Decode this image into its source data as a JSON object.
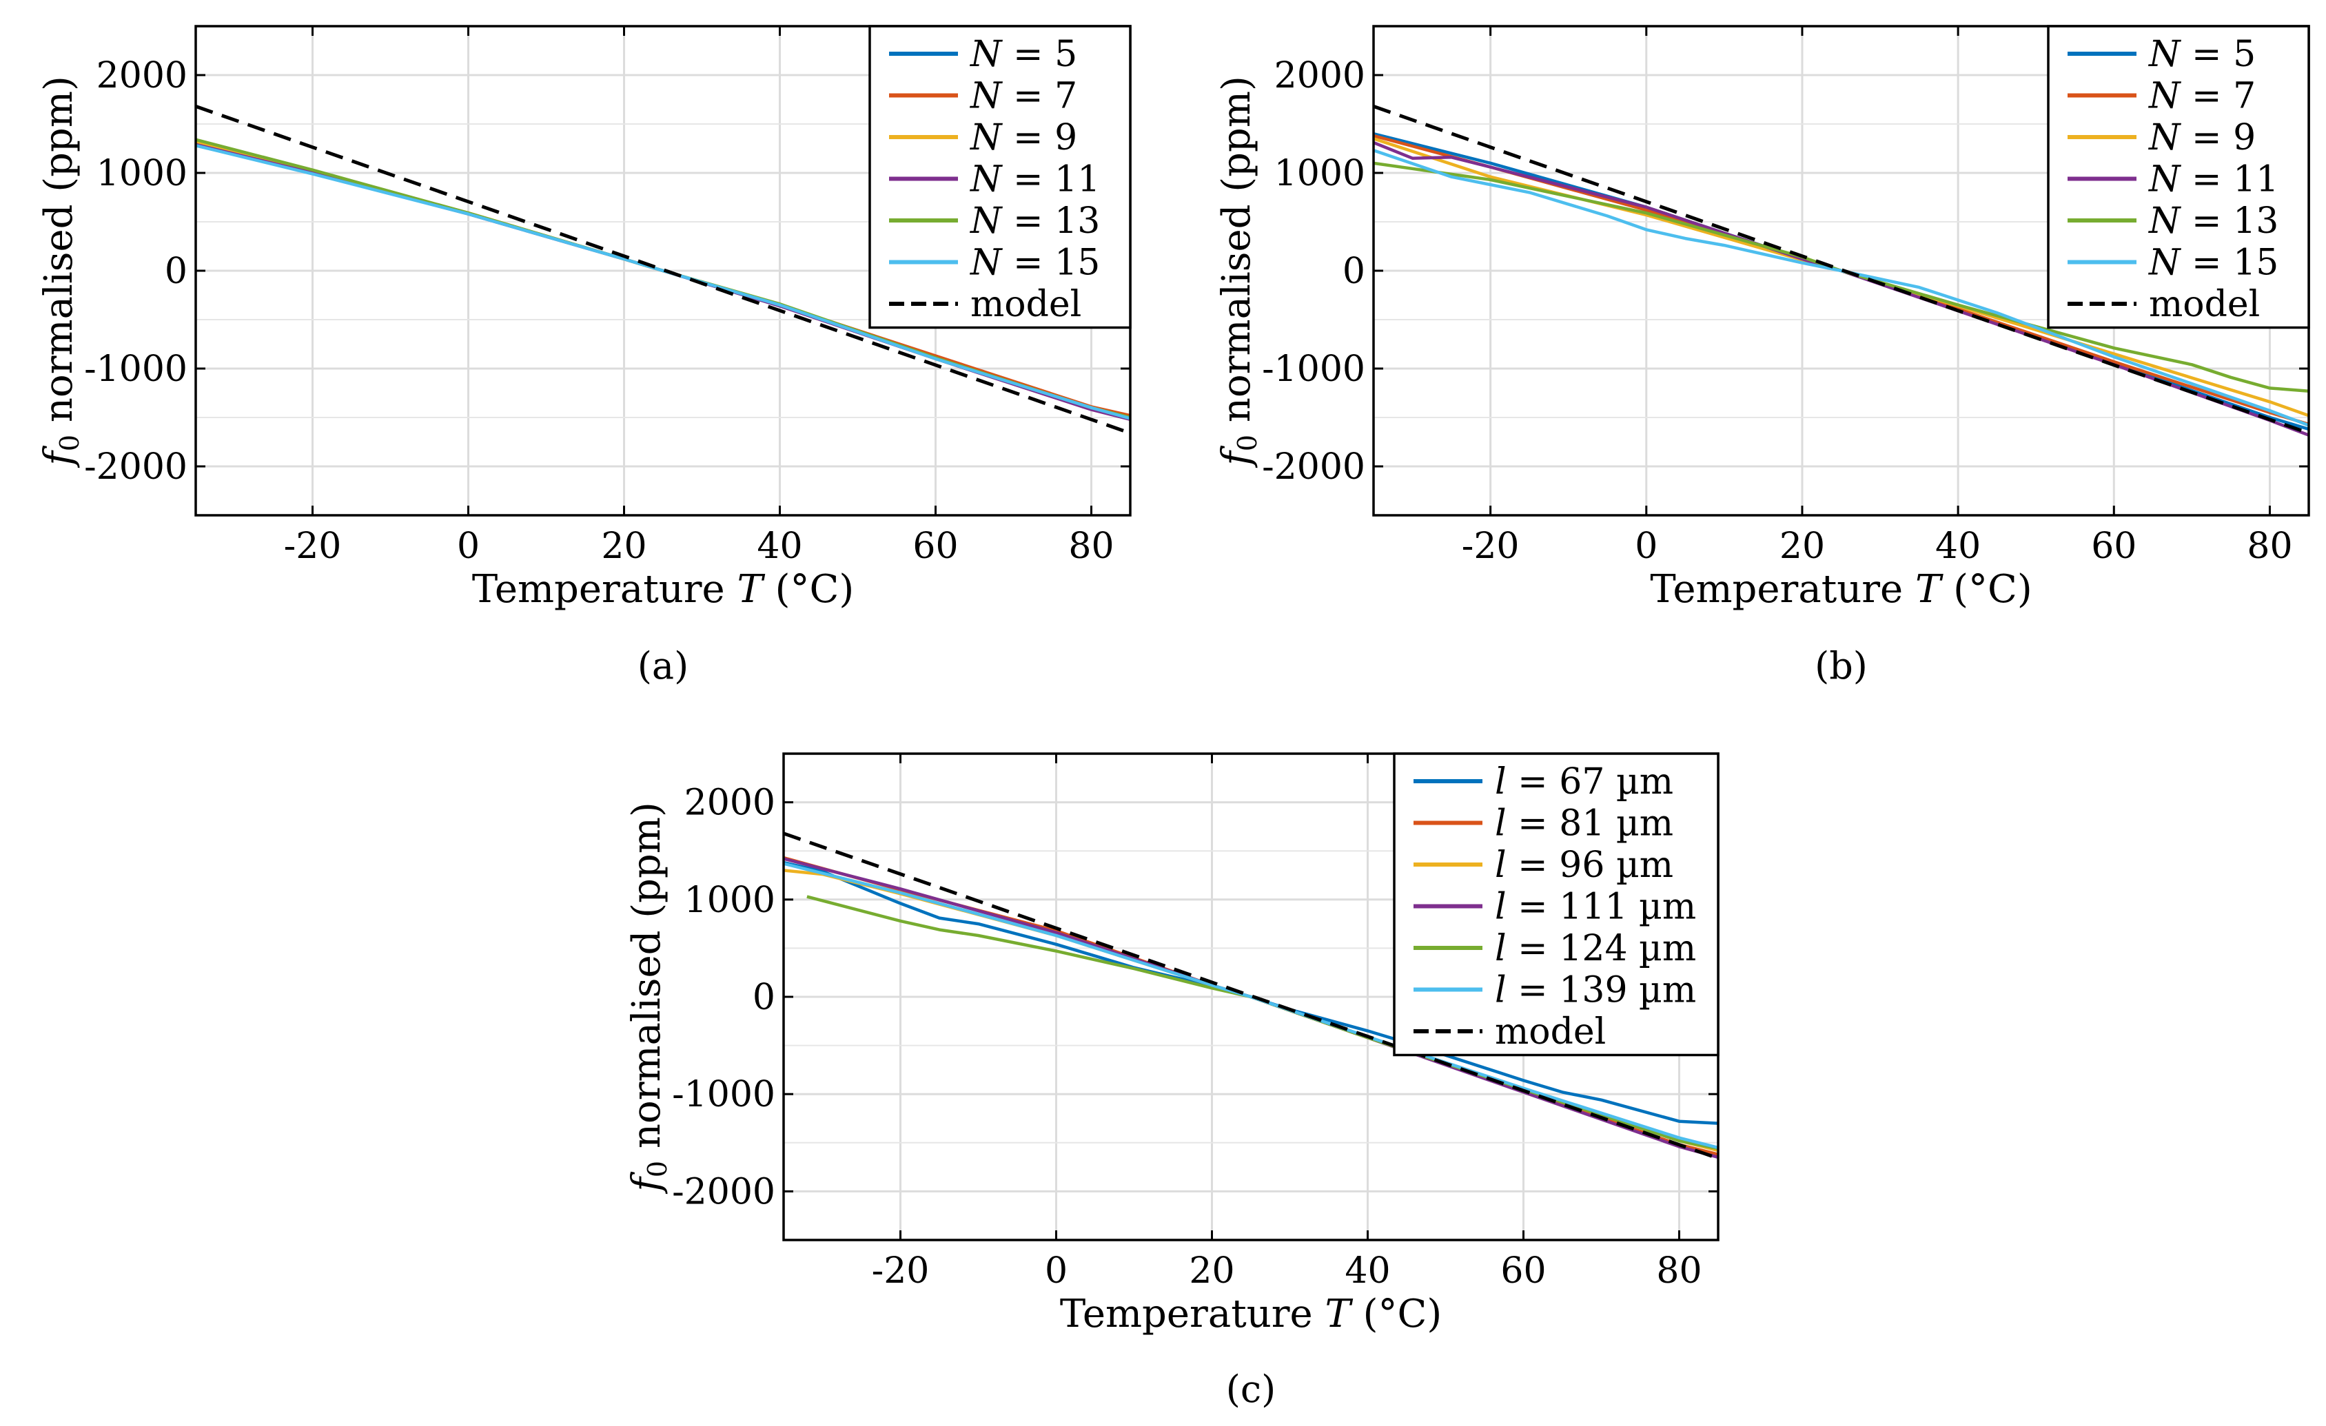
{
  "figure": {
    "captions": [
      "(a)",
      "(b)",
      "(c)"
    ]
  },
  "chart_data": [
    {
      "type": "line",
      "caption": "(a)",
      "xlabel": "Temperature T (°C)",
      "ylabel": "f0 normalised (ppm)",
      "xlim": [
        -35,
        85
      ],
      "ylim": [
        -2500,
        2500
      ],
      "xticks": [
        -20,
        0,
        20,
        40,
        60,
        80
      ],
      "yticks": [
        2000,
        1000,
        0,
        -1000,
        -2000
      ],
      "grid": true,
      "legend_position": "top-right",
      "series": [
        {
          "name": "N = 5",
          "color": "#0072BD",
          "style": "solid",
          "x": [
            -35,
            -20,
            0,
            20,
            25,
            40,
            60,
            80,
            85
          ],
          "y": [
            1280,
            1000,
            580,
            120,
            0,
            -360,
            -880,
            -1400,
            -1510
          ]
        },
        {
          "name": "N = 7",
          "color": "#D95319",
          "style": "solid",
          "x": [
            -35,
            -20,
            0,
            20,
            25,
            40,
            65,
            80,
            85
          ],
          "y": [
            1310,
            1010,
            590,
            120,
            0,
            -350,
            -1000,
            -1390,
            -1480
          ]
        },
        {
          "name": "N = 9",
          "color": "#EDB120",
          "style": "solid",
          "x": [
            -35,
            -20,
            0,
            20,
            25,
            40,
            60,
            80,
            85
          ],
          "y": [
            1320,
            1020,
            590,
            120,
            0,
            -350,
            -900,
            -1410,
            -1500
          ]
        },
        {
          "name": "N = 11",
          "color": "#7E2F8E",
          "style": "solid",
          "x": [
            -35,
            -20,
            0,
            20,
            25,
            40,
            60,
            80,
            85
          ],
          "y": [
            1290,
            1000,
            580,
            120,
            0,
            -360,
            -900,
            -1420,
            -1520
          ]
        },
        {
          "name": "N = 13",
          "color": "#77AC30",
          "style": "solid",
          "x": [
            -35,
            -20,
            0,
            20,
            25,
            40,
            60,
            80,
            85
          ],
          "y": [
            1340,
            1030,
            590,
            120,
            0,
            -340,
            -890,
            -1400,
            -1500
          ]
        },
        {
          "name": "N = 15",
          "color": "#4DBEEE",
          "style": "solid",
          "x": [
            -35,
            -20,
            0,
            20,
            25,
            40,
            60,
            80,
            85
          ],
          "y": [
            1280,
            990,
            580,
            120,
            0,
            -350,
            -900,
            -1400,
            -1510
          ]
        },
        {
          "name": "model",
          "color": "#000000",
          "style": "dashed",
          "x": [
            -35,
            85
          ],
          "y": [
            1680,
            -1660
          ]
        }
      ]
    },
    {
      "type": "line",
      "caption": "(b)",
      "xlabel": "Temperature T (°C)",
      "ylabel": "f0 normalised (ppm)",
      "xlim": [
        -35,
        85
      ],
      "ylim": [
        -2500,
        2500
      ],
      "xticks": [
        -20,
        0,
        20,
        40,
        60,
        80
      ],
      "yticks": [
        2000,
        1000,
        0,
        -1000,
        -2000
      ],
      "grid": true,
      "legend_position": "top-right",
      "series": [
        {
          "name": "N = 5",
          "color": "#0072BD",
          "style": "solid",
          "x": [
            -35,
            -20,
            0,
            20,
            25,
            40,
            60,
            80,
            85
          ],
          "y": [
            1400,
            1100,
            650,
            120,
            0,
            -400,
            -950,
            -1500,
            -1620
          ]
        },
        {
          "name": "N = 7",
          "color": "#D95319",
          "style": "solid",
          "x": [
            -35,
            -20,
            0,
            20,
            25,
            40,
            60,
            80,
            85
          ],
          "y": [
            1380,
            1060,
            620,
            120,
            0,
            -390,
            -930,
            -1450,
            -1570
          ]
        },
        {
          "name": "N = 9",
          "color": "#EDB120",
          "style": "solid",
          "x": [
            -35,
            -20,
            0,
            20,
            25,
            40,
            60,
            80,
            85
          ],
          "y": [
            1350,
            960,
            570,
            110,
            0,
            -360,
            -850,
            -1340,
            -1480
          ]
        },
        {
          "name": "N = 11",
          "color": "#7E2F8E",
          "style": "solid",
          "x": [
            -35,
            -30,
            -25,
            -20,
            0,
            20,
            25,
            40,
            60,
            80,
            85
          ],
          "y": [
            1310,
            1150,
            1160,
            1060,
            650,
            120,
            0,
            -410,
            -960,
            -1530,
            -1680
          ]
        },
        {
          "name": "N = 13",
          "color": "#77AC30",
          "style": "solid",
          "x": [
            -35,
            -20,
            0,
            20,
            25,
            40,
            60,
            70,
            75,
            80,
            85
          ],
          "y": [
            1100,
            930,
            590,
            140,
            0,
            -350,
            -790,
            -960,
            -1090,
            -1200,
            -1230
          ]
        },
        {
          "name": "N = 15",
          "color": "#4DBEEE",
          "style": "solid",
          "x": [
            -35,
            -25,
            -15,
            -5,
            0,
            5,
            10,
            20,
            25,
            35,
            45,
            60,
            80,
            85
          ],
          "y": [
            1230,
            960,
            800,
            560,
            420,
            330,
            260,
            80,
            0,
            -170,
            -430,
            -880,
            -1430,
            -1580
          ]
        },
        {
          "name": "model",
          "color": "#000000",
          "style": "dashed",
          "x": [
            -35,
            85
          ],
          "y": [
            1680,
            -1660
          ]
        }
      ]
    },
    {
      "type": "line",
      "caption": "(c)",
      "xlabel": "Temperature T (°C)",
      "ylabel": "f0 normalised (ppm)",
      "xlim": [
        -35,
        85
      ],
      "ylim": [
        -2500,
        2500
      ],
      "xticks": [
        -20,
        0,
        20,
        40,
        60,
        80
      ],
      "yticks": [
        2000,
        1000,
        0,
        -1000,
        -2000
      ],
      "grid": true,
      "legend_position": "top-right",
      "series": [
        {
          "name": "l = 67 µm",
          "color": "#0072BD",
          "style": "solid",
          "x": [
            -35,
            -30,
            -20,
            -15,
            -10,
            0,
            10,
            20,
            25,
            30,
            40,
            47,
            50,
            60,
            65,
            70,
            80,
            85
          ],
          "y": [
            1380,
            1290,
            960,
            810,
            750,
            540,
            300,
            110,
            0,
            -130,
            -350,
            -520,
            -600,
            -860,
            -980,
            -1060,
            -1280,
            -1300
          ]
        },
        {
          "name": "l = 81 µm",
          "color": "#D95319",
          "style": "solid",
          "x": [
            -35,
            -20,
            0,
            20,
            25,
            40,
            60,
            80,
            85
          ],
          "y": [
            1430,
            1100,
            680,
            120,
            0,
            -420,
            -970,
            -1520,
            -1620
          ]
        },
        {
          "name": "l = 96 µm",
          "color": "#EDB120",
          "style": "solid",
          "x": [
            -35,
            -30,
            -20,
            0,
            20,
            25,
            40,
            60,
            80,
            85
          ],
          "y": [
            1300,
            1260,
            1060,
            630,
            120,
            0,
            -420,
            -950,
            -1480,
            -1580
          ]
        },
        {
          "name": "l = 111 µm",
          "color": "#7E2F8E",
          "style": "solid",
          "x": [
            -35,
            -20,
            0,
            20,
            25,
            40,
            60,
            80,
            85
          ],
          "y": [
            1420,
            1110,
            660,
            120,
            0,
            -420,
            -980,
            -1540,
            -1650
          ]
        },
        {
          "name": "l = 124 µm",
          "color": "#77AC30",
          "style": "solid",
          "x": [
            -32,
            -20,
            -15,
            -10,
            0,
            10,
            20,
            25,
            40,
            60,
            80,
            85
          ],
          "y": [
            1030,
            780,
            690,
            630,
            470,
            290,
            90,
            0,
            -420,
            -950,
            -1480,
            -1560
          ]
        },
        {
          "name": "l = 139 µm",
          "color": "#4DBEEE",
          "style": "solid",
          "x": [
            -35,
            -20,
            0,
            20,
            25,
            40,
            60,
            80,
            85
          ],
          "y": [
            1370,
            1070,
            630,
            120,
            0,
            -410,
            -940,
            -1450,
            -1550
          ]
        },
        {
          "name": "model",
          "color": "#000000",
          "style": "dashed",
          "x": [
            -35,
            85
          ],
          "y": [
            1680,
            -1660
          ]
        }
      ]
    }
  ]
}
